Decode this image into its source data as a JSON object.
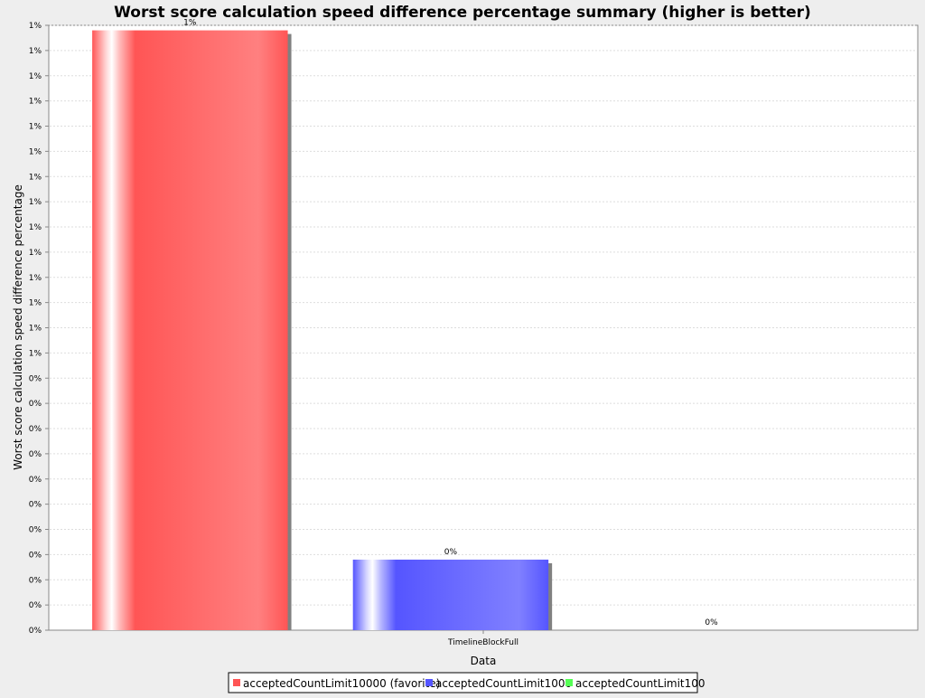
{
  "chart_data": {
    "type": "bar",
    "title": "Worst score calculation speed difference percentage summary (higher is better)",
    "xlabel": "Data",
    "ylabel": "Worst score calculation speed difference percentage",
    "categories": [
      "TimelineBlockFull"
    ],
    "series": [
      {
        "name": "acceptedCountLimit10000 (favorite)",
        "values": [
          1.19
        ],
        "value_label": "1%",
        "color": "#ff5555"
      },
      {
        "name": "acceptedCountLimit1000",
        "values": [
          0.14
        ],
        "value_label": "0%",
        "color": "#5555ff"
      },
      {
        "name": "acceptedCountLimit100",
        "values": [
          0
        ],
        "value_label": "0%",
        "color": "#55ff55"
      }
    ],
    "ylim": [
      0,
      1.2
    ],
    "y_ticks": [
      {
        "value": 0.0,
        "label": "0%"
      },
      {
        "value": 0.05,
        "label": "0%"
      },
      {
        "value": 0.1,
        "label": "0%"
      },
      {
        "value": 0.15,
        "label": "0%"
      },
      {
        "value": 0.2,
        "label": "0%"
      },
      {
        "value": 0.25,
        "label": "0%"
      },
      {
        "value": 0.3,
        "label": "0%"
      },
      {
        "value": 0.35,
        "label": "0%"
      },
      {
        "value": 0.4,
        "label": "0%"
      },
      {
        "value": 0.45,
        "label": "0%"
      },
      {
        "value": 0.5,
        "label": "0%"
      },
      {
        "value": 0.55,
        "label": "1%"
      },
      {
        "value": 0.6,
        "label": "1%"
      },
      {
        "value": 0.65,
        "label": "1%"
      },
      {
        "value": 0.7,
        "label": "1%"
      },
      {
        "value": 0.75,
        "label": "1%"
      },
      {
        "value": 0.8,
        "label": "1%"
      },
      {
        "value": 0.85,
        "label": "1%"
      },
      {
        "value": 0.9,
        "label": "1%"
      },
      {
        "value": 0.95,
        "label": "1%"
      },
      {
        "value": 1.0,
        "label": "1%"
      },
      {
        "value": 1.05,
        "label": "1%"
      },
      {
        "value": 1.1,
        "label": "1%"
      },
      {
        "value": 1.15,
        "label": "1%"
      },
      {
        "value": 1.2,
        "label": "1%"
      }
    ],
    "grid": true,
    "legend_position": "bottom"
  }
}
